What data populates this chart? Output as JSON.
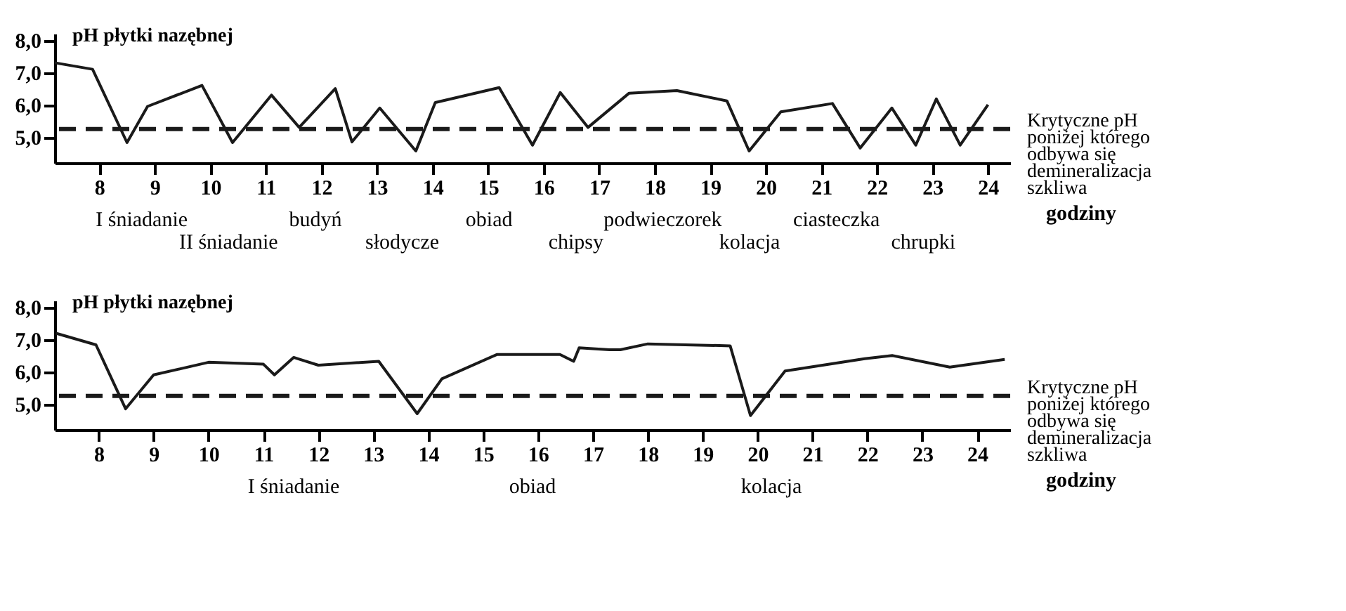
{
  "chart_data": [
    {
      "type": "line",
      "ylabel": "pH płytki nazębnej",
      "xlabel": "godziny",
      "x": [
        7.2,
        7.88,
        8.5,
        8.87,
        9.85,
        10.4,
        11.1,
        11.6,
        12.25,
        12.55,
        13.05,
        13.7,
        14.05,
        15.2,
        15.8,
        16.3,
        16.8,
        17.54,
        18.4,
        19.3,
        19.7,
        20.27,
        21.2,
        21.7,
        22.27,
        22.7,
        23.07,
        23.5,
        24.0
      ],
      "series": [
        {
          "color": "#1a1a1a",
          "values": [
            7.3,
            7.1,
            4.83,
            5.95,
            6.6,
            4.83,
            6.3,
            5.3,
            6.5,
            4.85,
            5.9,
            4.57,
            6.07,
            6.53,
            4.75,
            6.38,
            5.3,
            6.36,
            6.44,
            6.12,
            4.57,
            5.78,
            6.04,
            4.66,
            5.9,
            4.75,
            6.18,
            4.75,
            6.0
          ]
        }
      ],
      "xlim": [
        7.2,
        24.4
      ],
      "xticks": [
        8,
        9,
        10,
        11,
        12,
        13,
        14,
        15,
        16,
        17,
        18,
        19,
        20,
        21,
        22,
        23,
        24
      ],
      "ylim": [
        4.2,
        8.2
      ],
      "yticks": [
        {
          "value": 5,
          "label": "5,0"
        },
        {
          "value": 6,
          "label": "6,0"
        },
        {
          "value": 7,
          "label": "7,0"
        },
        {
          "value": 8,
          "label": "8,0"
        }
      ],
      "ref_lines": [
        {
          "axis": "y",
          "value": 5.25,
          "label": "Krytyczne pH\nponiżej którego\nodbywa się\ndemineralizacja\nszkliwa",
          "color": "#1a1a1a",
          "line_style": "dashed"
        }
      ],
      "annotations": [
        "I śniadanie",
        "II śniadanie",
        "budyń",
        "słodycze",
        "obiad",
        "chipsy",
        "podwieczorek",
        "kolacja",
        "ciasteczka",
        "chrupki"
      ],
      "grid": false,
      "legend": false,
      "line_style": "solid",
      "marker": "none"
    },
    {
      "type": "line",
      "ylabel": "pH płytki nazębnej",
      "xlabel": "godziny",
      "x": [
        7.22,
        7.95,
        8.49,
        9.0,
        10.0,
        11.0,
        11.2,
        11.55,
        12.0,
        13.1,
        13.8,
        14.25,
        15.25,
        16.4,
        16.65,
        16.75,
        17.3,
        17.5,
        18.0,
        19.5,
        19.87,
        20.5,
        21.95,
        22.45,
        23.5,
        24.5
      ],
      "series": [
        {
          "color": "#1a1a1a",
          "values": [
            7.19,
            6.83,
            4.85,
            5.9,
            6.29,
            6.23,
            5.9,
            6.44,
            6.2,
            6.32,
            4.7,
            5.78,
            6.53,
            6.53,
            6.32,
            6.74,
            6.68,
            6.68,
            6.86,
            6.8,
            4.64,
            6.02,
            6.4,
            6.5,
            6.14,
            6.38
          ]
        }
      ],
      "xlim": [
        7.2,
        24.6
      ],
      "xticks": [
        8,
        9,
        10,
        11,
        12,
        13,
        14,
        15,
        16,
        17,
        18,
        19,
        20,
        21,
        22,
        23,
        24
      ],
      "ylim": [
        4.2,
        8.2
      ],
      "yticks": [
        {
          "value": 5,
          "label": "5,0"
        },
        {
          "value": 6,
          "label": "6,0"
        },
        {
          "value": 7,
          "label": "7,0"
        },
        {
          "value": 8,
          "label": "8,0"
        }
      ],
      "ref_lines": [
        {
          "axis": "y",
          "value": 5.25,
          "label": "Krytyczne pH\nponiżej którego\nodbywa się\ndemineralizacja\nszkliwa",
          "color": "#1a1a1a",
          "line_style": "dashed"
        }
      ],
      "annotations": [
        "I śniadanie",
        "obiad",
        "kolacja"
      ],
      "grid": false,
      "legend": false,
      "line_style": "solid",
      "marker": "none"
    }
  ]
}
